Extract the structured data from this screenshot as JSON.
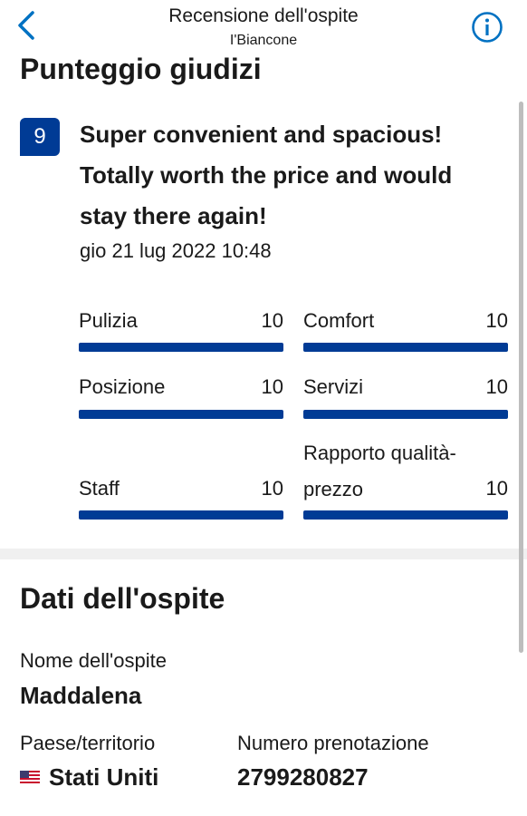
{
  "header": {
    "title": "Recensione dell'ospite",
    "subtitle": "I'Biancone"
  },
  "scores_section": {
    "heading": "Punteggio giudizi",
    "overall_score": "9",
    "review_title": "Super convenient and spacious! Totally worth the price and would stay there again!",
    "date": "gio 21 lug 2022 10:48",
    "categories": [
      {
        "label": "Pulizia",
        "value": "10",
        "fill": 1.0
      },
      {
        "label": "Comfort",
        "value": "10",
        "fill": 1.0
      },
      {
        "label": "Posizione",
        "value": "10",
        "fill": 1.0
      },
      {
        "label": "Servizi",
        "value": "10",
        "fill": 1.0
      },
      {
        "label": "Staff",
        "value": "10",
        "fill": 1.0
      },
      {
        "label": "Rapporto qualità-prezzo",
        "value": "10",
        "fill": 1.0
      }
    ]
  },
  "guest_section": {
    "heading": "Dati dell'ospite",
    "name_label": "Nome dell'ospite",
    "name_value": "Maddalena",
    "country_label": "Paese/territorio",
    "country_value": "Stati Uniti",
    "country_flag": "us-flag-icon",
    "booking_label": "Numero prenotazione",
    "booking_value": "2799280827"
  },
  "colors": {
    "accent": "#003b95",
    "link": "#0071c2"
  }
}
